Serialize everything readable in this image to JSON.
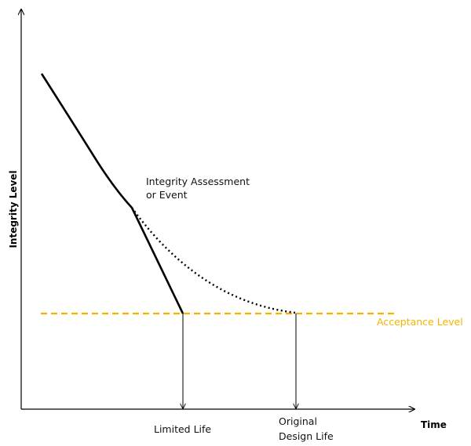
{
  "axes": {
    "y_title": "Integrity Level",
    "x_title": "Time"
  },
  "annotations": {
    "event_line1": "Integrity Assessment",
    "event_line2": "or Event",
    "acceptance": "Acceptance Level",
    "limited_life": "Limited Life",
    "design_life_line1": "Original",
    "design_life_line2": "Design Life"
  },
  "colors": {
    "acceptance_line": "#F5B300",
    "curves": "#000000"
  }
}
